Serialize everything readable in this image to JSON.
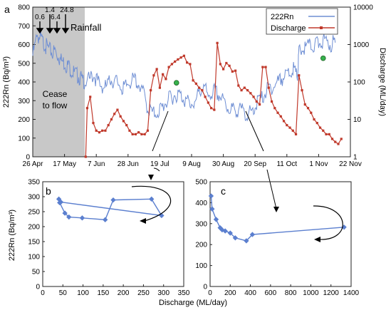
{
  "colors": {
    "rn": "#6f8fd4",
    "discharge": "#c0392b",
    "marker": "#37b24d",
    "shade": "#c8c8c8",
    "scatter": "#5b7fcf"
  },
  "panel_a": {
    "label": "a",
    "ylabel_left": "222Rn (Bq/m³)",
    "ylabel_right": "Discharge (ML/day)",
    "xticks": [
      "26 Apr",
      "17 May",
      "7 Jun",
      "28 Jun",
      "19 Jul",
      "9 Aug",
      "30 Aug",
      "20 Sep",
      "11 Oct",
      "1 Nov",
      "22 Nov"
    ],
    "yticks_left": [
      "0",
      "100",
      "200",
      "300",
      "400",
      "500",
      "600",
      "700",
      "800"
    ],
    "yticks_right": [
      "1",
      "10",
      "100",
      "1000",
      "10000"
    ],
    "legend": [
      {
        "label": "222Rn"
      },
      {
        "label": "Discharge"
      }
    ],
    "rainfall_label": "Rainfall",
    "rain_events": [
      "0.6",
      "1.4",
      "6.4",
      "24.8"
    ],
    "cease_label_1": "Cease",
    "cease_label_2": "to flow"
  },
  "panel_b": {
    "label": "b",
    "ylabel": "222Rn (Bq/m³)",
    "xticks": [
      "0",
      "50",
      "100",
      "150",
      "200",
      "250",
      "300",
      "350"
    ],
    "yticks": [
      "0",
      "50",
      "100",
      "150",
      "200",
      "250",
      "300",
      "350"
    ]
  },
  "panel_c": {
    "label": "c",
    "xticks": [
      "0",
      "200",
      "400",
      "600",
      "800",
      "1000",
      "1200",
      "1400"
    ],
    "yticks": [
      "0",
      "100",
      "200",
      "300",
      "400",
      "500"
    ]
  },
  "bottom_xlabel": "Discharge (ML/day)",
  "chart_data": [
    {
      "type": "line",
      "panel": "a",
      "x_axis": "date",
      "x_start_label": "26 Apr",
      "xlim_days": [
        0,
        210
      ],
      "ylim_left": [
        0,
        800
      ],
      "ylim_right_log": [
        1,
        10000
      ],
      "ylabel": "222Rn (Bq/m³)",
      "y2label": "Discharge (ML/day)",
      "cease_to_flow_days": [
        0,
        35
      ],
      "series": [
        {
          "name": "222Rn",
          "axis": "left",
          "x": [
            0,
            3,
            6,
            9,
            12,
            15,
            18,
            21,
            24,
            27,
            30,
            33,
            36,
            40,
            44,
            48,
            52,
            56,
            60,
            64,
            68,
            72,
            76,
            80,
            84,
            88,
            92,
            96,
            100,
            104,
            108,
            112,
            116,
            120,
            124,
            128,
            132,
            136,
            140,
            144,
            148,
            152,
            156,
            160,
            164,
            168,
            172,
            175,
            176,
            180,
            184,
            188,
            192,
            196,
            200
          ],
          "values": [
            540,
            650,
            620,
            590,
            560,
            560,
            520,
            500,
            480,
            450,
            430,
            410,
            400,
            440,
            390,
            370,
            410,
            400,
            360,
            400,
            410,
            370,
            260,
            230,
            250,
            290,
            320,
            340,
            310,
            280,
            300,
            380,
            330,
            350,
            320,
            270,
            250,
            250,
            240,
            230,
            290,
            320,
            370,
            380,
            420,
            430,
            470,
            420,
            560,
            580,
            590,
            600,
            620,
            600,
            610
          ]
        },
        {
          "name": "Discharge",
          "axis": "right_log",
          "x": [
            35,
            36,
            38,
            40,
            42,
            44,
            46,
            48,
            50,
            52,
            54,
            56,
            58,
            60,
            62,
            64,
            66,
            68,
            70,
            72,
            74,
            76,
            78,
            80,
            82,
            84,
            86,
            88,
            90,
            92,
            94,
            96,
            98,
            100,
            102,
            104,
            106,
            108,
            110,
            112,
            114,
            116,
            118,
            120,
            122,
            124,
            126,
            128,
            130,
            132,
            134,
            136,
            138,
            140,
            142,
            144,
            146,
            148,
            150,
            152,
            154,
            156,
            158,
            160,
            162,
            164,
            166,
            168,
            170,
            172,
            174,
            176,
            178,
            180,
            182,
            184,
            186,
            188,
            190,
            192,
            194,
            196,
            198,
            200,
            202,
            204
          ],
          "values": [
            1,
            20,
            40,
            8,
            5,
            4.5,
            5,
            5,
            7,
            10,
            14,
            18,
            12,
            9,
            7,
            5,
            4,
            4,
            4.5,
            4,
            4,
            5,
            60,
            150,
            220,
            70,
            160,
            120,
            250,
            300,
            350,
            400,
            450,
            500,
            330,
            300,
            110,
            90,
            70,
            60,
            40,
            28,
            20,
            18,
            1100,
            300,
            220,
            320,
            270,
            190,
            200,
            80,
            60,
            70,
            60,
            50,
            40,
            30,
            25,
            250,
            250,
            70,
            30,
            20,
            15,
            12,
            9,
            7,
            6,
            5,
            4,
            150,
            60,
            25,
            20,
            15,
            10,
            8,
            6,
            5,
            4,
            4,
            3,
            2.5,
            2.2,
            3
          ]
        }
      ],
      "markers": [
        {
          "x": 95,
          "value": 95
        },
        {
          "x": 192,
          "value": 430
        }
      ]
    },
    {
      "type": "scatter",
      "panel": "b",
      "xlabel": "Discharge (ML/day)",
      "ylabel": "222Rn (Bq/m³)",
      "xlim": [
        0,
        350
      ],
      "ylim": [
        0,
        350
      ],
      "x": [
        40,
        42,
        55,
        65,
        98,
        155,
        175,
        270,
        295,
        45
      ],
      "y": [
        292,
        280,
        245,
        232,
        229,
        223,
        289,
        292,
        237,
        282
      ]
    },
    {
      "type": "scatter",
      "panel": "c",
      "xlabel": "Discharge (ML/day)",
      "xlim": [
        0,
        1400
      ],
      "ylim": [
        0,
        500
      ],
      "x": [
        10,
        20,
        60,
        100,
        120,
        150,
        200,
        250,
        360,
        420,
        1330
      ],
      "y": [
        432,
        370,
        320,
        280,
        270,
        265,
        255,
        232,
        218,
        248,
        283
      ]
    }
  ]
}
